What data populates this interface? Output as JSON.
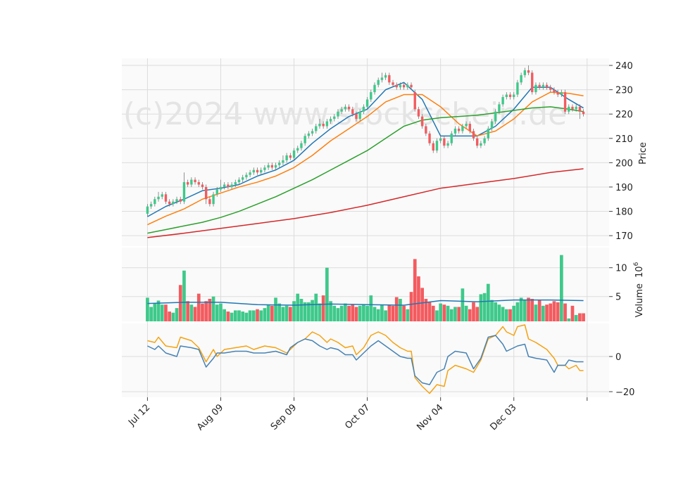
{
  "chart_data": {
    "type": "candlestick",
    "watermark": "(c)2024 www.stockschein.de",
    "grid": true,
    "xlim": [
      -7,
      126
    ],
    "xticks": [
      {
        "value": 0,
        "label": "Jul 12"
      },
      {
        "value": 20,
        "label": "Aug 09"
      },
      {
        "value": 40,
        "label": "Sep 09"
      },
      {
        "value": 60,
        "label": "Oct 07"
      },
      {
        "value": 80,
        "label": "Nov 04"
      },
      {
        "value": 100,
        "label": "Dec 03"
      },
      {
        "value": 120,
        "label": null
      }
    ],
    "price": {
      "ylabel": "Price",
      "ylim": [
        165.7,
        242.9
      ],
      "yticks": [
        170,
        180,
        190,
        200,
        210,
        220,
        230,
        240
      ],
      "up_color": "#3ec98a",
      "down_color": "#f35b5f",
      "open": [
        179,
        182,
        183,
        185,
        186,
        187,
        184,
        183,
        184,
        185,
        184,
        192,
        191,
        193,
        192,
        191,
        190,
        185,
        183,
        187,
        189,
        190,
        191,
        190,
        191,
        192,
        193,
        194,
        195,
        196,
        197,
        196,
        197,
        198,
        199,
        198,
        199,
        200,
        201,
        203,
        202,
        205,
        206,
        208,
        211,
        212,
        213,
        215,
        216,
        215,
        217,
        218,
        219,
        221,
        222,
        223,
        222,
        220,
        218,
        221,
        223,
        226,
        229,
        232,
        234,
        235,
        236,
        233,
        232,
        231,
        232,
        231,
        232,
        229,
        222,
        219,
        215,
        212,
        208,
        205,
        209,
        210,
        207,
        208,
        212,
        214,
        213,
        215,
        216,
        213,
        210,
        207,
        208,
        210,
        214,
        217,
        221,
        224,
        227,
        228,
        227,
        228,
        233,
        236,
        238,
        237,
        229,
        232,
        231,
        232,
        231,
        230,
        229,
        228,
        229,
        221,
        223,
        222,
        223,
        221
      ],
      "high": [
        183,
        184,
        186,
        188,
        188,
        188,
        185,
        185,
        186,
        186,
        196,
        193,
        194,
        194,
        193,
        192,
        191,
        186,
        188,
        190,
        193,
        192,
        192,
        192,
        193,
        194,
        195,
        196,
        197,
        198,
        198,
        198,
        199,
        200,
        200,
        200,
        201,
        203,
        204,
        204,
        206,
        207,
        209,
        212,
        213,
        214,
        216,
        218,
        217,
        218,
        219,
        220,
        222,
        223,
        224,
        224,
        223,
        221,
        222,
        224,
        227,
        230,
        233,
        235,
        237,
        237,
        237,
        234,
        233,
        233,
        233,
        233,
        233,
        230,
        223,
        220,
        216,
        213,
        209,
        210,
        211,
        211,
        209,
        213,
        215,
        215,
        216,
        217,
        217,
        214,
        211,
        209,
        211,
        215,
        218,
        222,
        225,
        228,
        229,
        229,
        229,
        234,
        237,
        239,
        240,
        238,
        233,
        233,
        233,
        233,
        232,
        231,
        230,
        230,
        230,
        224,
        224,
        224,
        224,
        222
      ],
      "low": [
        178,
        181,
        182,
        184,
        185,
        183,
        182,
        182,
        183,
        183,
        183,
        190,
        190,
        191,
        190,
        189,
        183,
        182,
        182,
        186,
        188,
        189,
        189,
        189,
        190,
        191,
        192,
        193,
        194,
        195,
        195,
        195,
        196,
        197,
        197,
        197,
        198,
        199,
        200,
        201,
        201,
        204,
        205,
        207,
        210,
        211,
        212,
        214,
        214,
        214,
        216,
        217,
        218,
        220,
        221,
        221,
        219,
        217,
        217,
        220,
        222,
        225,
        228,
        231,
        233,
        234,
        232,
        231,
        230,
        230,
        230,
        230,
        230,
        221,
        218,
        214,
        211,
        207,
        204,
        204,
        208,
        206,
        206,
        207,
        211,
        212,
        212,
        214,
        212,
        209,
        206,
        206,
        207,
        209,
        213,
        216,
        220,
        223,
        226,
        226,
        226,
        227,
        232,
        235,
        236,
        228,
        228,
        230,
        230,
        230,
        229,
        228,
        227,
        227,
        220,
        220,
        221,
        221,
        218,
        219
      ],
      "close": [
        182,
        183,
        185,
        186,
        187,
        184,
        183,
        184,
        185,
        184,
        192,
        191,
        193,
        192,
        191,
        190,
        185,
        183,
        187,
        189,
        190,
        191,
        190,
        191,
        192,
        193,
        194,
        195,
        196,
        197,
        196,
        197,
        198,
        199,
        198,
        199,
        200,
        201,
        203,
        202,
        205,
        206,
        208,
        211,
        212,
        213,
        215,
        216,
        215,
        217,
        218,
        219,
        221,
        222,
        223,
        222,
        220,
        218,
        221,
        223,
        226,
        229,
        232,
        234,
        235,
        236,
        233,
        232,
        231,
        232,
        231,
        232,
        231,
        222,
        219,
        215,
        212,
        208,
        205,
        209,
        210,
        207,
        208,
        212,
        214,
        213,
        215,
        216,
        213,
        210,
        207,
        208,
        210,
        214,
        217,
        221,
        224,
        227,
        228,
        227,
        228,
        233,
        236,
        238,
        237,
        229,
        232,
        231,
        232,
        231,
        230,
        229,
        228,
        229,
        221,
        223,
        222,
        223,
        221,
        220
      ],
      "moving_averages": [
        {
          "color": "#1f77b4",
          "x": [
            0,
            5,
            10,
            15,
            20,
            25,
            30,
            35,
            40,
            45,
            50,
            55,
            60,
            65,
            70,
            75,
            80,
            85,
            90,
            95,
            100,
            105,
            110,
            115,
            119
          ],
          "values": [
            177.8,
            182,
            185,
            188.5,
            189.5,
            191,
            194.5,
            197,
            201,
            208,
            214,
            219,
            222,
            230,
            233,
            226,
            211,
            211,
            211,
            215,
            222,
            231,
            231,
            226,
            222.5
          ]
        },
        {
          "color": "#ff7f0e",
          "x": [
            0,
            5,
            10,
            15,
            20,
            25,
            30,
            35,
            40,
            45,
            50,
            55,
            60,
            65,
            70,
            75,
            80,
            85,
            90,
            95,
            100,
            105,
            110,
            115,
            119
          ],
          "values": [
            174.5,
            178,
            181,
            185,
            187.5,
            190,
            192,
            194.5,
            198,
            203,
            209,
            214,
            219,
            225,
            228,
            228,
            223,
            216,
            211,
            213,
            218,
            225,
            229,
            228.5,
            227.5
          ]
        },
        {
          "color": "#2ca02c",
          "x": [
            0,
            5,
            10,
            15,
            20,
            25,
            30,
            35,
            40,
            45,
            50,
            55,
            60,
            65,
            70,
            75,
            80,
            85,
            90,
            95,
            100,
            105,
            110,
            115,
            119
          ],
          "values": [
            171,
            172.5,
            174,
            175.5,
            177.5,
            180,
            183,
            186,
            189.5,
            193,
            197,
            201,
            205,
            210,
            215,
            217.5,
            218.5,
            219,
            219.5,
            220.5,
            221.5,
            222.5,
            223,
            222,
            221
          ]
        },
        {
          "color": "#d62728",
          "x": [
            0,
            10,
            20,
            30,
            40,
            50,
            60,
            70,
            80,
            90,
            100,
            110,
            119
          ],
          "values": [
            169.2,
            171,
            173,
            175,
            177,
            179.5,
            182.5,
            186,
            189.5,
            191.5,
            193.5,
            196,
            197.5
          ]
        }
      ]
    },
    "volume": {
      "ylabel": "Volume",
      "offset_base": "10",
      "offset_exponent": "6",
      "ylim": [
        0.7,
        13.5
      ],
      "yticks": [
        5,
        10
      ],
      "values": [
        4.8,
        3.2,
        3.8,
        4.3,
        3.6,
        3.6,
        2.4,
        2.2,
        3.0,
        7.0,
        9.5,
        4.2,
        3.6,
        3.2,
        5.5,
        3.8,
        4.2,
        4.6,
        5.0,
        3.6,
        3.8,
        2.8,
        2.4,
        2.2,
        2.6,
        2.6,
        2.4,
        2.2,
        2.6,
        2.6,
        2.8,
        2.6,
        3.0,
        3.6,
        3.4,
        4.8,
        3.8,
        3.2,
        3.4,
        3.2,
        4.2,
        5.5,
        4.6,
        4.0,
        4.0,
        4.4,
        5.5,
        3.8,
        5.2,
        10.0,
        4.2,
        3.4,
        3.0,
        3.4,
        3.8,
        3.4,
        3.6,
        3.2,
        3.4,
        3.6,
        3.4,
        5.2,
        3.2,
        2.8,
        3.6,
        2.6,
        3.6,
        3.4,
        4.9,
        4.6,
        3.4,
        2.8,
        5.8,
        11.5,
        8.5,
        6.5,
        4.6,
        4.0,
        3.4,
        2.6,
        3.8,
        3.6,
        3.4,
        2.8,
        3.2,
        3.2,
        6.4,
        3.4,
        2.8,
        4.0,
        3.2,
        5.4,
        5.6,
        7.2,
        4.4,
        4.0,
        3.6,
        3.2,
        2.8,
        2.8,
        3.4,
        4.0,
        4.8,
        4.4,
        4.8,
        4.6,
        3.6,
        4.4,
        3.4,
        3.6,
        3.8,
        4.2,
        4.0,
        12.2,
        3.8,
        1.2,
        3.4,
        1.8,
        2.1,
        2.1
      ],
      "moving_average": {
        "color": "#1f77b4",
        "x": [
          0,
          10,
          20,
          30,
          40,
          50,
          60,
          70,
          80,
          90,
          100,
          110,
          119
        ],
        "values": [
          3.8,
          4.0,
          4.0,
          3.6,
          3.5,
          3.7,
          3.6,
          3.5,
          4.3,
          4.1,
          4.4,
          4.4,
          4.3
        ]
      }
    },
    "oscillator": {
      "ylim": [
        -23.2,
        18.8
      ],
      "yticks": [
        0,
        {
          "value": -20,
          "label": "−20"
        }
      ],
      "series": [
        {
          "color": "#f5a20f",
          "x": [
            0,
            2,
            3,
            5,
            8,
            9,
            12,
            14,
            16,
            18,
            19,
            21,
            24,
            27,
            29,
            32,
            35,
            38,
            39,
            41,
            43,
            45,
            47,
            49,
            50,
            52,
            54,
            56,
            57,
            59,
            61,
            63,
            65,
            67,
            69,
            71,
            72,
            73,
            75,
            77,
            79,
            81,
            82,
            84,
            87,
            89,
            91,
            93,
            95,
            97,
            98,
            100,
            101,
            103,
            104,
            106,
            109,
            111,
            112,
            114,
            115,
            117,
            118,
            119
          ],
          "values": [
            9,
            8,
            11,
            6,
            5,
            11,
            9,
            5,
            -3,
            4,
            0,
            4,
            5,
            6,
            4,
            6,
            5,
            2,
            4,
            8,
            10,
            14,
            12,
            8,
            10,
            8,
            5,
            6,
            1,
            5,
            12,
            14,
            12,
            8,
            5,
            3,
            3,
            -12,
            -17,
            -21,
            -16,
            -17,
            -8,
            -5,
            -7,
            -9,
            -2,
            10,
            12,
            17,
            14,
            12,
            17,
            18,
            10,
            8,
            4,
            -1,
            -5,
            -5,
            -7,
            -5,
            -8,
            -8
          ]
        },
        {
          "color": "#4682b4",
          "x": [
            0,
            2,
            3,
            5,
            8,
            9,
            12,
            14,
            16,
            18,
            19,
            21,
            24,
            27,
            29,
            32,
            35,
            38,
            39,
            41,
            43,
            45,
            47,
            49,
            50,
            52,
            54,
            56,
            57,
            59,
            61,
            63,
            65,
            67,
            69,
            71,
            72,
            73,
            75,
            77,
            79,
            81,
            82,
            84,
            87,
            89,
            91,
            93,
            95,
            97,
            98,
            100,
            101,
            103,
            104,
            106,
            109,
            111,
            112,
            114,
            115,
            117,
            118,
            119
          ],
          "values": [
            6,
            4,
            6,
            2,
            0,
            6,
            5,
            4,
            -6,
            -1,
            2,
            2,
            3,
            3,
            2,
            2,
            3,
            1,
            5,
            8,
            10,
            9,
            6,
            4,
            5,
            4,
            1,
            1,
            -2,
            2,
            6,
            9,
            6,
            3,
            0,
            -1,
            -1,
            -11,
            -15,
            -16,
            -9,
            -7,
            0,
            3,
            2,
            -7,
            -1,
            11,
            12,
            7,
            3,
            5,
            6,
            7,
            0,
            -1,
            -2,
            -9,
            -5,
            -5,
            -2,
            -3,
            -3,
            -3
          ]
        }
      ]
    }
  }
}
